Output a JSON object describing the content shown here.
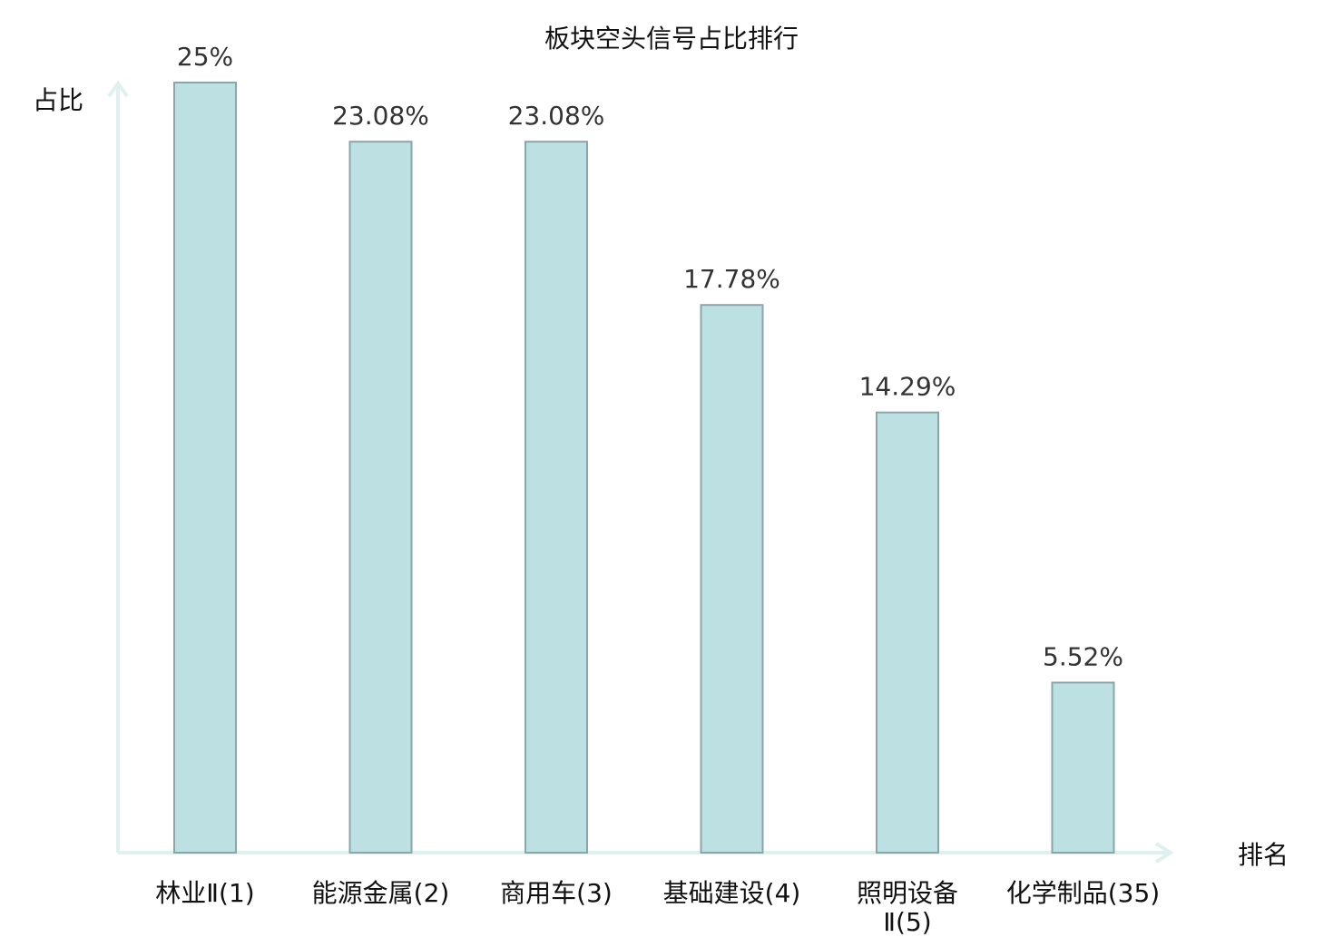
{
  "chart_data": {
    "type": "bar",
    "title": "板块空头信号占比排行",
    "ylabel": "占比",
    "xlabel": "排名",
    "ylim": [
      0,
      26
    ],
    "categories": [
      [
        "林业Ⅱ(1)"
      ],
      [
        "能源金属(2)"
      ],
      [
        "商用车(3)"
      ],
      [
        "基础建设(4)"
      ],
      [
        "照明设备",
        "Ⅱ(5)"
      ],
      [
        "化学制品(35)"
      ]
    ],
    "values": [
      25,
      23.08,
      23.08,
      17.78,
      14.29,
      5.52
    ],
    "value_labels": [
      "25%",
      "23.08%",
      "23.08%",
      "17.78%",
      "14.29%",
      "5.52%"
    ],
    "highlight_index": 5,
    "colors": {
      "bar_fill": "#bde0e3",
      "bar_stroke": "#8aa6a9",
      "axis": "#dff1ef",
      "highlight_text": "#e00000",
      "text": "#111111",
      "value_text": "#333333"
    }
  }
}
